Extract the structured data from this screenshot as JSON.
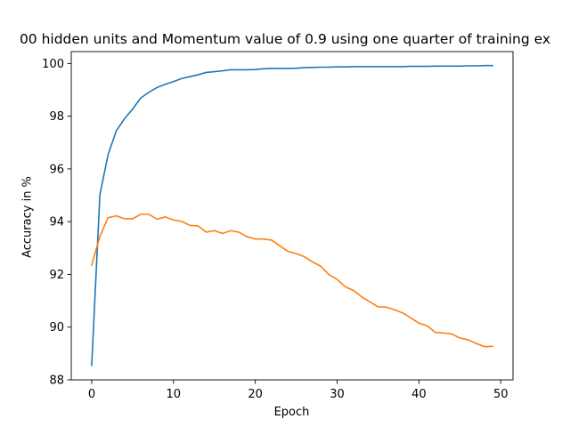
{
  "chart_data": {
    "type": "line",
    "title": "00 hidden units and Momentum value of 0.9 using one quarter of training ex",
    "xlabel": "Epoch",
    "ylabel": "Accuracy in %",
    "xlim": [
      -2.5,
      51.5
    ],
    "ylim": [
      88,
      100.45
    ],
    "xticks": [
      0,
      10,
      20,
      30,
      40,
      50
    ],
    "yticks": [
      88,
      90,
      92,
      94,
      96,
      98,
      100
    ],
    "grid": false,
    "x": [
      0,
      1,
      2,
      3,
      4,
      5,
      6,
      7,
      8,
      9,
      10,
      11,
      12,
      13,
      14,
      15,
      16,
      17,
      18,
      19,
      20,
      21,
      22,
      23,
      24,
      25,
      26,
      27,
      28,
      29,
      30,
      31,
      32,
      33,
      34,
      35,
      36,
      37,
      38,
      39,
      40,
      41,
      42,
      43,
      44,
      45,
      46,
      47,
      48,
      49
    ],
    "series": [
      {
        "color": "#1f77b4",
        "values": [
          88.55,
          95.02,
          96.54,
          97.44,
          97.9,
          98.27,
          98.69,
          98.91,
          99.09,
          99.21,
          99.31,
          99.43,
          99.5,
          99.57,
          99.66,
          99.69,
          99.72,
          99.76,
          99.76,
          99.76,
          99.77,
          99.8,
          99.81,
          99.81,
          99.81,
          99.82,
          99.84,
          99.85,
          99.86,
          99.86,
          99.87,
          99.87,
          99.88,
          99.88,
          99.88,
          99.88,
          99.88,
          99.88,
          99.88,
          99.89,
          99.89,
          99.89,
          99.9,
          99.9,
          99.9,
          99.9,
          99.91,
          99.91,
          99.92,
          99.92
        ]
      },
      {
        "color": "#ff7f0e",
        "values": [
          92.35,
          93.44,
          94.15,
          94.22,
          94.11,
          94.11,
          94.28,
          94.28,
          94.09,
          94.18,
          94.06,
          94.01,
          93.86,
          93.84,
          93.6,
          93.66,
          93.55,
          93.66,
          93.6,
          93.43,
          93.34,
          93.34,
          93.3,
          93.08,
          92.87,
          92.79,
          92.67,
          92.47,
          92.31,
          91.99,
          91.81,
          91.53,
          91.39,
          91.15,
          90.96,
          90.77,
          90.76,
          90.66,
          90.54,
          90.35,
          90.15,
          90.05,
          89.8,
          89.78,
          89.74,
          89.59,
          89.52,
          89.38,
          89.26,
          89.27
        ]
      }
    ]
  }
}
